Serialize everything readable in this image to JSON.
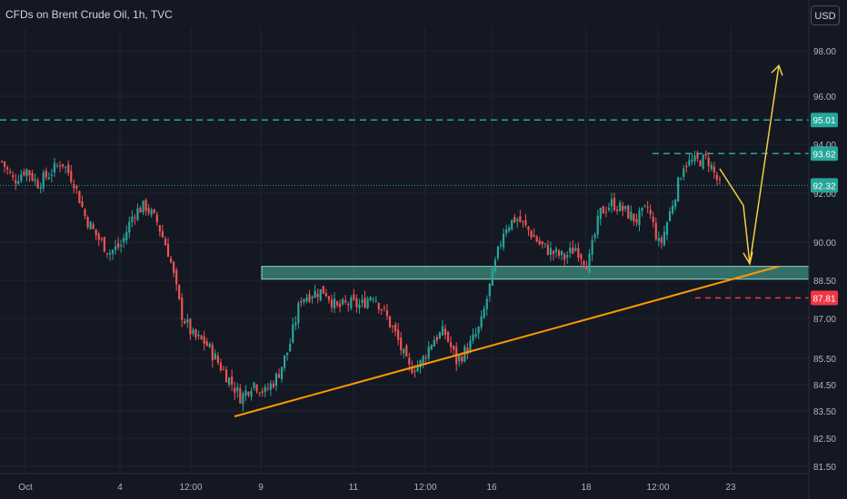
{
  "header": {
    "symbol_title": "CFDs on Brent Crude Oil, 1h, TVC",
    "currency_button": "USD"
  },
  "colors": {
    "background": "#141823",
    "grid": "#1f2330",
    "up_candle": "#26a69a",
    "down_candle": "#ef5350",
    "axis_text": "#b2b5be",
    "zone_fill": "#3d8f80",
    "zone_border": "#8fd3c4",
    "level_green": "#26a69a",
    "level_red": "#f23645",
    "trendline": "#ff9800",
    "arrow": "#f4d03f"
  },
  "chart_data": {
    "type": "candlestick",
    "title": "CFDs on Brent Crude Oil, 1h, TVC",
    "ylim": [
      81.0,
      100.0
    ],
    "y_ticks": [
      81.5,
      82.5,
      83.5,
      84.5,
      85.5,
      87.0,
      88.5,
      90.0,
      92.0,
      94.0,
      96.0,
      98.0
    ],
    "x_ticks": [
      "Oct",
      "4",
      "12:00",
      "9",
      "11",
      "12:00",
      "16",
      "18",
      "12:00",
      "23"
    ],
    "grid": true,
    "price_labels": [
      {
        "value": 95.01,
        "label": "95.01",
        "kind": "green"
      },
      {
        "value": 93.62,
        "label": "93.62",
        "kind": "green"
      },
      {
        "value": 92.32,
        "label": "92.32",
        "kind": "current"
      },
      {
        "value": 87.81,
        "label": "87.81",
        "kind": "red"
      }
    ],
    "support_zone": {
      "top": 89.05,
      "bottom": 88.55
    },
    "trendline": {
      "start_price": 83.3,
      "end_price": 89.05
    },
    "projection_path": [
      93.0,
      91.5,
      89.15,
      97.35
    ],
    "price_path": [
      93.3,
      92.5,
      93.0,
      92.4,
      92.8,
      93.3,
      92.5,
      91.0,
      90.2,
      89.6,
      89.9,
      91.2,
      91.5,
      90.8,
      89.5,
      87.2,
      86.3,
      86.1,
      85.4,
      84.7,
      84.0,
      84.6,
      84.2,
      84.8,
      85.9,
      87.8,
      88.0,
      88.1,
      87.4,
      87.6,
      87.5,
      88.0,
      87.2,
      86.3,
      85.1,
      85.3,
      86.2,
      86.5,
      85.4,
      85.9,
      86.7,
      88.7,
      90.6,
      91.0,
      90.5,
      89.9,
      89.6,
      89.4,
      89.8,
      89.1,
      91.2,
      91.6,
      91.3,
      90.9,
      91.4,
      89.8,
      91.5,
      93.2,
      93.3,
      93.4,
      92.3
    ]
  }
}
